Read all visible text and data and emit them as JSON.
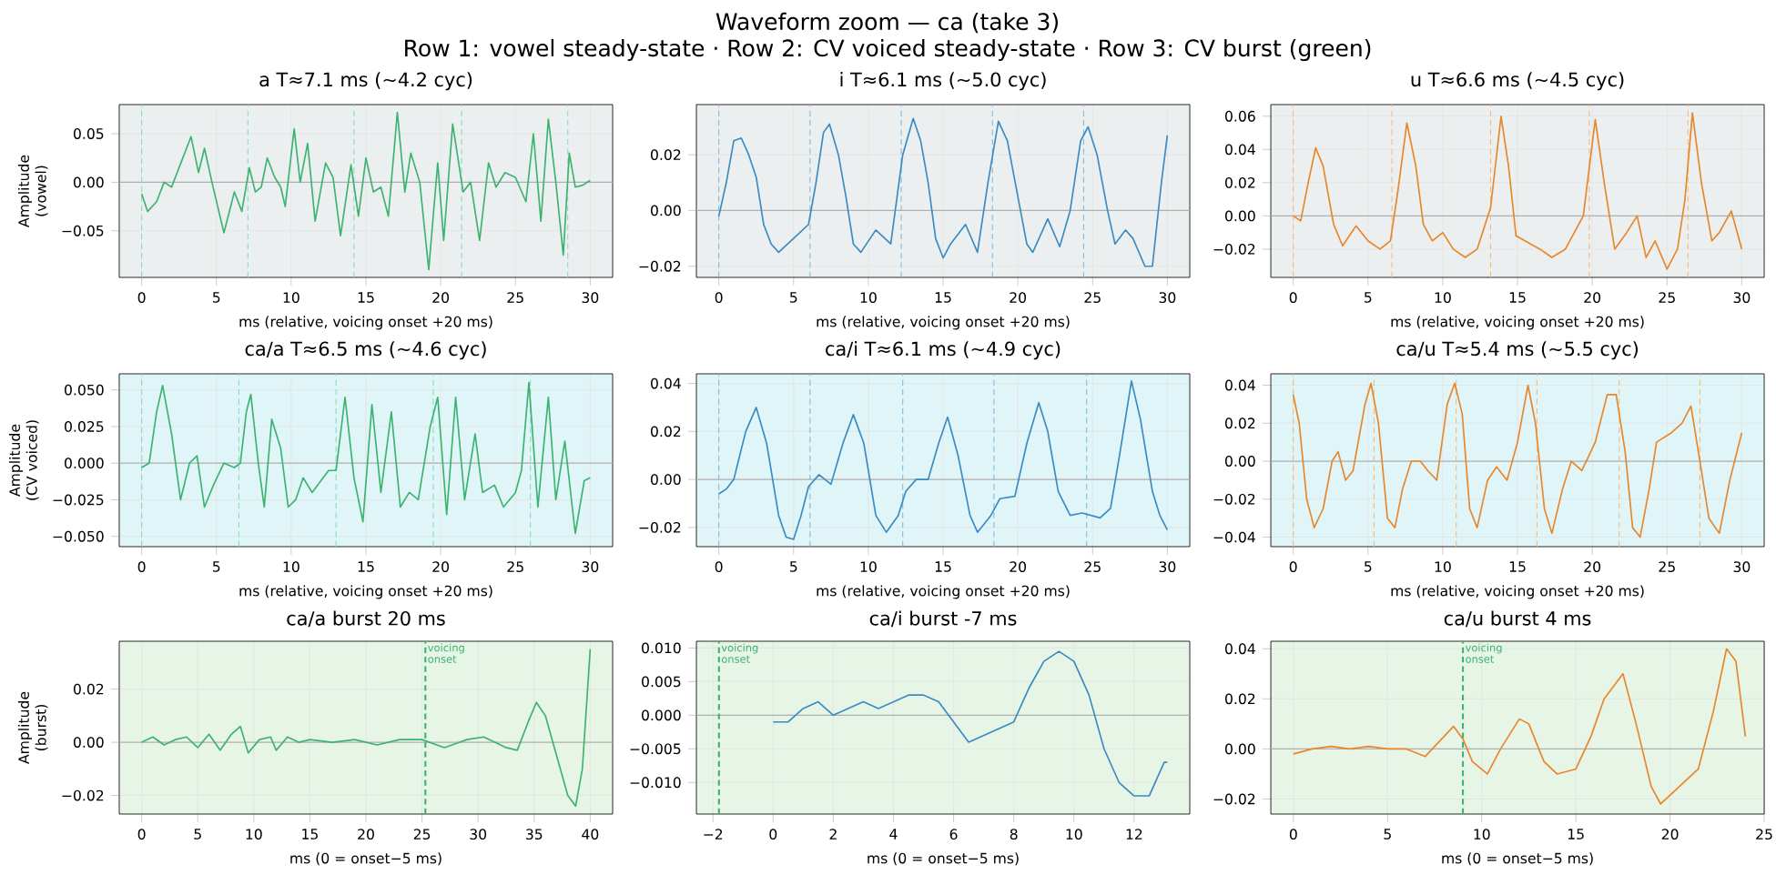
{
  "chart_data": [
    {
      "type": "other",
      "title": "Waveform zoom — ca (take 3)",
      "subtitle": "Row 1: vowel steady-state · Row 2: CV voiced steady-state · Row 3: CV burst (green)"
    },
    {
      "type": "line",
      "title": "a  T≈7.1 ms  (~4.2 cyc)",
      "xlabel": "ms (relative, voicing onset +20 ms)",
      "ylabel": "Amplitude (vowel)",
      "xlim": [
        -1.5,
        31.5
      ],
      "ylim": [
        -0.098,
        0.08
      ],
      "xticks": [
        0,
        5,
        10,
        15,
        20,
        25,
        30
      ],
      "yticks": [
        {
          "value": -0.05,
          "label": "−0.05"
        },
        {
          "value": 0,
          "label": "0.00"
        },
        0.05
      ],
      "grid": true,
      "ref_lines": [
        {
          "axis": "y",
          "value": 0,
          "color": "#b0b0b0",
          "line_style": "solid"
        },
        {
          "axis": "x",
          "value": 0,
          "color": "#88d8c0",
          "line_style": "dashed"
        },
        {
          "axis": "x",
          "value": 7.1,
          "color": "#88d8c0",
          "line_style": "dashed"
        },
        {
          "axis": "x",
          "value": 14.2,
          "color": "#88d8c0",
          "line_style": "dashed"
        },
        {
          "axis": "x",
          "value": 21.4,
          "color": "#88d8c0",
          "line_style": "dashed"
        },
        {
          "axis": "x",
          "value": 28.5,
          "color": "#88d8c0",
          "line_style": "dashed"
        }
      ],
      "series": [
        {
          "color": "#3cb371",
          "x": [
            0,
            0.4,
            1.0,
            1.5,
            2.0,
            2.5,
            3.3,
            3.8,
            4.2,
            4.7,
            5.5,
            6.2,
            6.7,
            7.2,
            7.6,
            8.0,
            8.4,
            8.9,
            9.3,
            9.6,
            10.2,
            10.6,
            11.1,
            11.6,
            12.3,
            12.8,
            13.3,
            14.0,
            14.5,
            15.0,
            15.5,
            16.0,
            16.5,
            17.1,
            17.6,
            18.0,
            18.6,
            19.2,
            19.8,
            20.2,
            20.8,
            21.5,
            22.0,
            22.6,
            23.2,
            23.7,
            24.3,
            25.0,
            25.7,
            26.2,
            26.7,
            27.2,
            27.7,
            28.2,
            28.6,
            29.0,
            29.5,
            30
          ],
          "values": [
            -0.012,
            -0.03,
            -0.02,
            0.0,
            -0.005,
            0.015,
            0.047,
            0.01,
            0.035,
            0.0,
            -0.052,
            -0.01,
            -0.03,
            0.015,
            -0.01,
            -0.005,
            0.025,
            0.005,
            -0.005,
            -0.025,
            0.055,
            0.0,
            0.04,
            -0.04,
            0.02,
            0.005,
            -0.055,
            0.018,
            -0.035,
            0.025,
            -0.01,
            -0.005,
            -0.035,
            0.072,
            -0.01,
            0.03,
            0.0,
            -0.09,
            0.02,
            -0.06,
            0.06,
            -0.01,
            0.0,
            -0.06,
            0.02,
            -0.005,
            0.01,
            0.005,
            -0.02,
            0.05,
            -0.04,
            0.065,
            0.0,
            -0.075,
            0.03,
            -0.005,
            -0.003,
            0.002
          ]
        }
      ]
    },
    {
      "type": "line",
      "title": "i  T≈6.1 ms  (~5.0 cyc)",
      "xlabel": "ms (relative, voicing onset +20 ms)",
      "xlim": [
        -1.5,
        31.5
      ],
      "ylim": [
        -0.024,
        0.038
      ],
      "xticks": [
        0,
        5,
        10,
        15,
        20,
        25,
        30
      ],
      "yticks": [
        {
          "value": -0.02,
          "label": "−0.02"
        },
        {
          "value": 0,
          "label": "0.00"
        },
        0.02
      ],
      "grid": true,
      "ref_lines": [
        {
          "axis": "y",
          "value": 0,
          "color": "#b0b0b0",
          "line_style": "solid"
        },
        {
          "axis": "x",
          "value": 0,
          "color": "#7fb8dc",
          "line_style": "dashed"
        },
        {
          "axis": "x",
          "value": 6.1,
          "color": "#7fb8dc",
          "line_style": "dashed"
        },
        {
          "axis": "x",
          "value": 12.2,
          "color": "#7fb8dc",
          "line_style": "dashed"
        },
        {
          "axis": "x",
          "value": 18.3,
          "color": "#7fb8dc",
          "line_style": "dashed"
        },
        {
          "axis": "x",
          "value": 24.4,
          "color": "#7fb8dc",
          "line_style": "dashed"
        }
      ],
      "series": [
        {
          "color": "#3a8bc2",
          "x": [
            0,
            0.5,
            1.0,
            1.5,
            2.0,
            2.5,
            3.0,
            3.5,
            4.0,
            5.0,
            6.0,
            6.5,
            7.0,
            7.4,
            8.0,
            8.5,
            9.0,
            9.5,
            10.5,
            11.5,
            12.3,
            13.0,
            13.5,
            14.0,
            14.5,
            15.0,
            15.5,
            16.5,
            17.3,
            18.0,
            18.7,
            19.3,
            20.0,
            20.6,
            21.0,
            22.0,
            22.8,
            23.5,
            24.2,
            24.7,
            25.3,
            26.0,
            26.5,
            27.2,
            27.7,
            28.5,
            29.0,
            29.6,
            30
          ],
          "values": [
            -0.002,
            0.01,
            0.025,
            0.026,
            0.02,
            0.012,
            -0.005,
            -0.012,
            -0.015,
            -0.01,
            -0.005,
            0.01,
            0.028,
            0.031,
            0.02,
            0.005,
            -0.012,
            -0.015,
            -0.007,
            -0.012,
            0.02,
            0.033,
            0.025,
            0.01,
            -0.01,
            -0.017,
            -0.012,
            -0.005,
            -0.015,
            0.01,
            0.032,
            0.025,
            0.005,
            -0.012,
            -0.015,
            -0.003,
            -0.013,
            0.0,
            0.025,
            0.03,
            0.02,
            0.0,
            -0.012,
            -0.007,
            -0.01,
            -0.02,
            -0.02,
            0.01,
            0.027
          ]
        }
      ]
    },
    {
      "type": "line",
      "title": "u  T≈6.6 ms  (~4.5 cyc)",
      "xlabel": "ms (relative, voicing onset +20 ms)",
      "xlim": [
        -1.5,
        31.5
      ],
      "ylim": [
        -0.037,
        0.067
      ],
      "xticks": [
        0,
        5,
        10,
        15,
        20,
        25,
        30
      ],
      "yticks": [
        {
          "value": -0.02,
          "label": "−0.02"
        },
        {
          "value": 0,
          "label": "0.00"
        },
        0.02,
        0.04,
        0.06
      ],
      "grid": true,
      "ref_lines": [
        {
          "axis": "y",
          "value": 0,
          "color": "#b0b0b0",
          "line_style": "solid"
        },
        {
          "axis": "x",
          "value": 0,
          "color": "#f5b87a",
          "line_style": "dashed"
        },
        {
          "axis": "x",
          "value": 6.6,
          "color": "#f5b87a",
          "line_style": "dashed"
        },
        {
          "axis": "x",
          "value": 13.2,
          "color": "#f5b87a",
          "line_style": "dashed"
        },
        {
          "axis": "x",
          "value": 19.8,
          "color": "#f5b87a",
          "line_style": "dashed"
        },
        {
          "axis": "x",
          "value": 26.4,
          "color": "#f5b87a",
          "line_style": "dashed"
        }
      ],
      "series": [
        {
          "color": "#e8862a",
          "x": [
            0,
            0.5,
            1.0,
            1.5,
            2.0,
            2.7,
            3.3,
            4.2,
            5.0,
            5.8,
            6.5,
            7.0,
            7.6,
            8.2,
            8.7,
            9.3,
            10.0,
            10.7,
            11.5,
            12.3,
            13.2,
            13.9,
            14.4,
            14.9,
            15.5,
            16.5,
            17.3,
            18.2,
            19.4,
            20.2,
            20.8,
            21.5,
            22.3,
            23.0,
            23.6,
            24.2,
            25.0,
            25.7,
            26.2,
            26.7,
            27.3,
            28.0,
            28.5,
            29.3,
            30
          ],
          "values": [
            0.0,
            -0.003,
            0.02,
            0.041,
            0.03,
            -0.005,
            -0.018,
            -0.006,
            -0.015,
            -0.02,
            -0.015,
            0.015,
            0.056,
            0.03,
            -0.005,
            -0.015,
            -0.01,
            -0.02,
            -0.025,
            -0.02,
            0.005,
            0.06,
            0.03,
            -0.012,
            -0.015,
            -0.02,
            -0.025,
            -0.02,
            0.0,
            0.058,
            0.02,
            -0.02,
            -0.01,
            0.0,
            -0.025,
            -0.015,
            -0.032,
            -0.02,
            0.01,
            0.062,
            0.02,
            -0.015,
            -0.01,
            0.003,
            -0.02
          ]
        }
      ]
    },
    {
      "type": "line",
      "title": "ca/a  T≈6.5 ms  (~4.6 cyc)",
      "xlabel": "ms (relative, voicing onset +20 ms)",
      "ylabel": "Amplitude (CV voiced)",
      "xlim": [
        -1.5,
        31.5
      ],
      "ylim": [
        -0.057,
        0.061
      ],
      "xticks": [
        0,
        5,
        10,
        15,
        20,
        25,
        30
      ],
      "yticks": [
        {
          "value": -0.05,
          "label": "−0.050"
        },
        {
          "value": -0.025,
          "label": "−0.025"
        },
        {
          "value": 0,
          "label": "0.000"
        },
        0.025,
        {
          "value": 0.05,
          "label": "0.050"
        }
      ],
      "grid": true,
      "ref_lines": [
        {
          "axis": "y",
          "value": 0,
          "color": "#b0b0b0",
          "line_style": "solid"
        },
        {
          "axis": "x",
          "value": 0,
          "color": "#88d8c0",
          "line_style": "dashed"
        },
        {
          "axis": "x",
          "value": 6.5,
          "color": "#88d8c0",
          "line_style": "dashed"
        },
        {
          "axis": "x",
          "value": 13.0,
          "color": "#88d8c0",
          "line_style": "dashed"
        },
        {
          "axis": "x",
          "value": 19.5,
          "color": "#88d8c0",
          "line_style": "dashed"
        },
        {
          "axis": "x",
          "value": 26.0,
          "color": "#88d8c0",
          "line_style": "dashed"
        }
      ],
      "series": [
        {
          "color": "#3cb371",
          "x": [
            0,
            0.5,
            1.0,
            1.4,
            2.0,
            2.6,
            3.2,
            3.7,
            4.2,
            4.8,
            5.5,
            6.2,
            6.6,
            7.0,
            7.3,
            7.8,
            8.2,
            8.7,
            9.3,
            9.8,
            10.3,
            10.8,
            11.4,
            12.5,
            13.0,
            13.6,
            14.2,
            14.8,
            15.4,
            16.0,
            16.7,
            17.3,
            17.9,
            18.5,
            19.3,
            19.8,
            20.4,
            21.0,
            21.6,
            22.3,
            22.8,
            23.6,
            24.2,
            25.0,
            25.4,
            25.9,
            26.5,
            27.2,
            27.7,
            28.3,
            29.0,
            29.6,
            30
          ],
          "values": [
            -0.003,
            0.0,
            0.035,
            0.053,
            0.02,
            -0.025,
            0.0,
            0.005,
            -0.03,
            -0.015,
            0.0,
            -0.003,
            0.0,
            0.035,
            0.047,
            0.0,
            -0.03,
            0.03,
            0.01,
            -0.03,
            -0.025,
            -0.01,
            -0.02,
            -0.005,
            -0.005,
            0.045,
            -0.01,
            -0.04,
            0.04,
            -0.02,
            0.035,
            -0.03,
            -0.02,
            -0.025,
            0.025,
            0.045,
            -0.035,
            0.045,
            -0.025,
            0.02,
            -0.02,
            -0.015,
            -0.03,
            -0.02,
            -0.005,
            0.055,
            -0.03,
            0.045,
            -0.025,
            0.015,
            -0.048,
            -0.012,
            -0.01
          ]
        }
      ]
    },
    {
      "type": "line",
      "title": "ca/i  T≈6.1 ms  (~4.9 cyc)",
      "xlabel": "ms (relative, voicing onset +20 ms)",
      "xlim": [
        -1.5,
        31.5
      ],
      "ylim": [
        -0.028,
        0.044
      ],
      "xticks": [
        0,
        5,
        10,
        15,
        20,
        25,
        30
      ],
      "yticks": [
        {
          "value": -0.02,
          "label": "−0.02"
        },
        {
          "value": 0,
          "label": "0.00"
        },
        0.02,
        0.04
      ],
      "grid": true,
      "ref_lines": [
        {
          "axis": "y",
          "value": 0,
          "color": "#b0b0b0",
          "line_style": "solid"
        },
        {
          "axis": "x",
          "value": 0,
          "color": "#7fb8dc",
          "line_style": "dashed"
        },
        {
          "axis": "x",
          "value": 6.1,
          "color": "#7fb8dc",
          "line_style": "dashed"
        },
        {
          "axis": "x",
          "value": 12.3,
          "color": "#7fb8dc",
          "line_style": "dashed"
        },
        {
          "axis": "x",
          "value": 18.4,
          "color": "#7fb8dc",
          "line_style": "dashed"
        },
        {
          "axis": "x",
          "value": 24.6,
          "color": "#7fb8dc",
          "line_style": "dashed"
        }
      ],
      "series": [
        {
          "color": "#3a8bc2",
          "x": [
            0,
            0.5,
            1.0,
            1.8,
            2.5,
            3.2,
            4.0,
            4.5,
            5.0,
            5.5,
            6.0,
            6.7,
            7.5,
            8.3,
            9.0,
            9.7,
            10.5,
            11.2,
            12.0,
            12.5,
            13.2,
            14.0,
            14.7,
            15.3,
            16.0,
            16.8,
            17.3,
            18.2,
            18.8,
            19.8,
            20.6,
            21.4,
            22.0,
            22.7,
            23.5,
            24.3,
            25.5,
            26.2,
            26.8,
            27.6,
            28.2,
            29.0,
            29.5,
            30
          ],
          "values": [
            -0.006,
            -0.004,
            0.0,
            0.02,
            0.03,
            0.015,
            -0.015,
            -0.024,
            -0.025,
            -0.015,
            -0.003,
            0.002,
            -0.002,
            0.015,
            0.027,
            0.015,
            -0.015,
            -0.022,
            -0.015,
            -0.005,
            0.0,
            0.0,
            0.015,
            0.026,
            0.01,
            -0.015,
            -0.022,
            -0.015,
            -0.008,
            -0.007,
            0.015,
            0.032,
            0.02,
            -0.005,
            -0.015,
            -0.014,
            -0.016,
            -0.012,
            0.01,
            0.041,
            0.025,
            -0.005,
            -0.015,
            -0.021
          ]
        }
      ]
    },
    {
      "type": "line",
      "title": "ca/u  T≈5.4 ms  (~5.5 cyc)",
      "xlabel": "ms (relative, voicing onset +20 ms)",
      "xlim": [
        -1.5,
        31.5
      ],
      "ylim": [
        -0.045,
        0.046
      ],
      "xticks": [
        0,
        5,
        10,
        15,
        20,
        25,
        30
      ],
      "yticks": [
        {
          "value": -0.04,
          "label": "−0.04"
        },
        {
          "value": -0.02,
          "label": "−0.02"
        },
        {
          "value": 0,
          "label": "0.00"
        },
        0.02,
        0.04
      ],
      "grid": true,
      "ref_lines": [
        {
          "axis": "y",
          "value": 0,
          "color": "#b0b0b0",
          "line_style": "solid"
        },
        {
          "axis": "x",
          "value": 0,
          "color": "#f5b87a",
          "line_style": "dashed"
        },
        {
          "axis": "x",
          "value": 5.4,
          "color": "#f5b87a",
          "line_style": "dashed"
        },
        {
          "axis": "x",
          "value": 10.9,
          "color": "#f5b87a",
          "line_style": "dashed"
        },
        {
          "axis": "x",
          "value": 16.3,
          "color": "#f5b87a",
          "line_style": "dashed"
        },
        {
          "axis": "x",
          "value": 21.8,
          "color": "#f5b87a",
          "line_style": "dashed"
        },
        {
          "axis": "x",
          "value": 27.2,
          "color": "#f5b87a",
          "line_style": "dashed"
        }
      ],
      "series": [
        {
          "color": "#e8862a",
          "x": [
            0,
            0.4,
            0.9,
            1.4,
            2.0,
            2.6,
            3.0,
            3.5,
            4.0,
            4.8,
            5.2,
            5.7,
            6.3,
            6.8,
            7.3,
            7.9,
            8.5,
            9.0,
            9.6,
            10.3,
            10.8,
            11.3,
            11.8,
            12.3,
            13.0,
            13.6,
            14.3,
            15.0,
            15.7,
            16.2,
            16.8,
            17.3,
            18.0,
            18.6,
            19.3,
            20.2,
            21.0,
            21.6,
            22.2,
            22.7,
            23.2,
            23.8,
            24.3,
            25.3,
            26.0,
            26.6,
            27.2,
            27.8,
            28.5,
            29.2,
            30
          ],
          "values": [
            0.035,
            0.02,
            -0.02,
            -0.035,
            -0.025,
            0.0,
            0.005,
            -0.01,
            -0.005,
            0.03,
            0.041,
            0.02,
            -0.03,
            -0.035,
            -0.015,
            0.0,
            0.0,
            -0.005,
            -0.01,
            0.03,
            0.041,
            0.025,
            -0.025,
            -0.035,
            -0.01,
            -0.003,
            -0.01,
            0.01,
            0.04,
            0.02,
            -0.025,
            -0.038,
            -0.015,
            0.0,
            -0.005,
            0.01,
            0.035,
            0.035,
            0.005,
            -0.035,
            -0.04,
            -0.015,
            0.01,
            0.015,
            0.02,
            0.029,
            0.0,
            -0.03,
            -0.038,
            -0.01,
            0.015
          ]
        }
      ]
    },
    {
      "type": "line",
      "title": "ca/a  burst 20 ms",
      "xlabel": "ms (0 = onset−5 ms)",
      "ylabel": "Amplitude (burst)",
      "xlim": [
        -2,
        42
      ],
      "ylim": [
        -0.027,
        0.038
      ],
      "xticks": [
        0,
        5,
        10,
        15,
        20,
        25,
        30,
        35,
        40
      ],
      "yticks": [
        {
          "value": -0.02,
          "label": "−0.02"
        },
        {
          "value": 0,
          "label": "0.00"
        },
        0.02
      ],
      "grid": true,
      "ref_lines": [
        {
          "axis": "y",
          "value": 0,
          "color": "#b0b0b0",
          "line_style": "solid"
        },
        {
          "axis": "x",
          "value": 25.3,
          "color": "#3cb371",
          "line_style": "dashed",
          "label": "voicing onset"
        }
      ],
      "series": [
        {
          "color": "#3cb371",
          "x": [
            0,
            1,
            2,
            3,
            4,
            5,
            6,
            7,
            8,
            8.8,
            9.5,
            10.5,
            11.5,
            12,
            13,
            14,
            15,
            17,
            19,
            21,
            23,
            25,
            27,
            29,
            30.5,
            31.5,
            32.5,
            33.5,
            34.5,
            35.2,
            36,
            37,
            38,
            38.7,
            39.3,
            40
          ],
          "values": [
            0.0,
            0.002,
            -0.001,
            0.001,
            0.002,
            -0.002,
            0.003,
            -0.003,
            0.003,
            0.006,
            -0.004,
            0.001,
            0.002,
            -0.003,
            0.002,
            0.0,
            0.001,
            0.0,
            0.001,
            -0.001,
            0.001,
            0.001,
            -0.002,
            0.001,
            0.002,
            0.0,
            -0.002,
            -0.003,
            0.008,
            0.015,
            0.01,
            -0.005,
            -0.02,
            -0.024,
            -0.01,
            0.035
          ]
        }
      ]
    },
    {
      "type": "line",
      "title": "ca/i  burst -7 ms",
      "xlabel": "ms (0 = onset−5 ms)",
      "xlim": [
        -2.55,
        13.85
      ],
      "ylim": [
        -0.0147,
        0.011
      ],
      "xticks": [
        {
          "value": -2,
          "label": "−2"
        },
        0,
        2,
        4,
        6,
        8,
        10,
        12
      ],
      "yticks": [
        {
          "value": -0.01,
          "label": "−0.010"
        },
        {
          "value": -0.005,
          "label": "−0.005"
        },
        {
          "value": 0,
          "label": "0.000"
        },
        0.005,
        {
          "value": 0.01,
          "label": "0.010"
        }
      ],
      "grid": true,
      "ref_lines": [
        {
          "axis": "y",
          "value": 0,
          "color": "#b0b0b0",
          "line_style": "solid"
        },
        {
          "axis": "x",
          "value": -1.8,
          "color": "#3cb371",
          "line_style": "dashed",
          "label": "voicing onset"
        }
      ],
      "series": [
        {
          "color": "#3a8bc2",
          "x": [
            0,
            0.5,
            1.0,
            1.5,
            2.0,
            2.5,
            3,
            3.5,
            4,
            4.5,
            5,
            5.5,
            6.0,
            6.5,
            7.0,
            7.5,
            8.0,
            8.5,
            9.0,
            9.5,
            10.0,
            10.5,
            11.0,
            11.5,
            12.0,
            12.5,
            13.0,
            13.1
          ],
          "values": [
            -0.001,
            -0.001,
            0.001,
            0.002,
            0.0,
            0.001,
            0.002,
            0.001,
            0.002,
            0.003,
            0.003,
            0.002,
            -0.001,
            -0.004,
            -0.003,
            -0.002,
            -0.001,
            0.004,
            0.008,
            0.0095,
            0.008,
            0.003,
            -0.005,
            -0.01,
            -0.012,
            -0.012,
            -0.007,
            -0.007
          ]
        }
      ]
    },
    {
      "type": "line",
      "title": "ca/u  burst 4 ms",
      "xlabel": "ms (0 = onset−5 ms)",
      "xlim": [
        -1.2,
        25
      ],
      "ylim": [
        -0.026,
        0.043
      ],
      "xticks": [
        0,
        5,
        10,
        15,
        20,
        25
      ],
      "yticks": [
        {
          "value": -0.02,
          "label": "−0.02"
        },
        {
          "value": 0,
          "label": "0.00"
        },
        0.02,
        0.04
      ],
      "grid": true,
      "ref_lines": [
        {
          "axis": "y",
          "value": 0,
          "color": "#b0b0b0",
          "line_style": "solid"
        },
        {
          "axis": "x",
          "value": 9.0,
          "color": "#3cb371",
          "line_style": "dashed",
          "label": "voicing onset"
        }
      ],
      "series": [
        {
          "color": "#e8862a",
          "x": [
            0,
            1,
            2,
            3,
            4,
            5,
            6,
            7,
            8,
            8.5,
            9.0,
            9.5,
            10.3,
            11.0,
            12.0,
            12.5,
            13.3,
            14.0,
            15.0,
            15.8,
            16.5,
            17.5,
            18.2,
            19.0,
            19.5,
            20.5,
            21.5,
            22.3,
            23.0,
            23.5,
            24.0
          ],
          "values": [
            -0.002,
            0.0,
            0.001,
            0.0,
            0.001,
            0.0,
            0.0,
            -0.003,
            0.005,
            0.009,
            0.004,
            -0.005,
            -0.01,
            0.0,
            0.012,
            0.01,
            -0.005,
            -0.01,
            -0.008,
            0.005,
            0.02,
            0.03,
            0.01,
            -0.015,
            -0.022,
            -0.015,
            -0.008,
            0.015,
            0.04,
            0.035,
            0.005
          ]
        }
      ]
    }
  ]
}
